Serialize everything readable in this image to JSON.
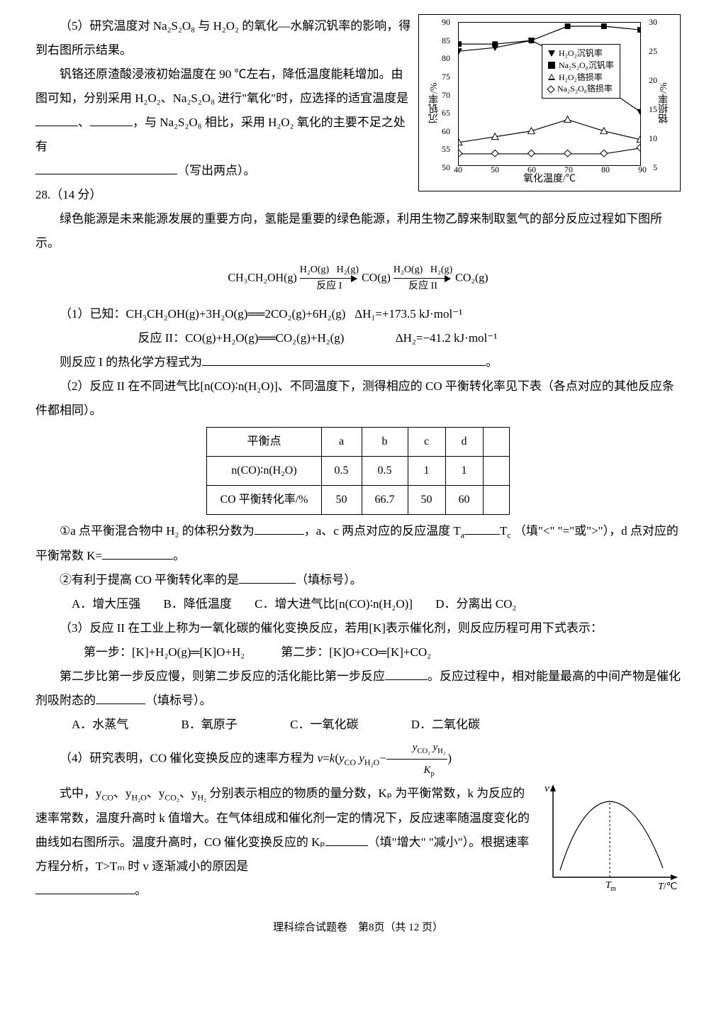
{
  "q27": {
    "part5": {
      "line1": "（5）研究温度对 Na₂S₂O₈ 与 H₂O₂ 的氧化—水解沉钒率的影响，得到右图所示结果。",
      "line2": "钒铬还原渣酸浸液初始温度在 90 ℃左右，降低温度能耗增加。由图可知，分别采用 H₂O₂、Na₂S₂O₈ 进行\"氧化\"时，应选择的适宜温度是",
      "line2b": "，与 Na₂S₂O₈ 相比，采用 H₂O₂ 氧化的主要不足之处有",
      "line3": "（写出两点）。"
    },
    "chart": {
      "type": "line",
      "x_label": "氧化温度/℃",
      "y_left_label": "沉钒率/%",
      "y_right_label": "铬损率/%",
      "xlim": [
        40,
        90
      ],
      "x_ticks": [
        40,
        50,
        60,
        70,
        80,
        90
      ],
      "y_left_lim": [
        50,
        90
      ],
      "y_left_ticks": [
        50,
        55,
        60,
        65,
        70,
        75,
        80,
        85,
        90
      ],
      "y_right_lim": [
        5,
        30
      ],
      "y_right_ticks": [
        5,
        10,
        15,
        20,
        25,
        30
      ],
      "background_color": "#ffffff",
      "legend": [
        {
          "marker": "triangle-down-filled",
          "label": "H₂O₂沉钒率",
          "axis": "left"
        },
        {
          "marker": "square-filled",
          "label": "Na₂S₂O₈沉钒率",
          "axis": "left"
        },
        {
          "marker": "triangle-up-hollow",
          "label": "H₂O₂铬损率",
          "axis": "right"
        },
        {
          "marker": "diamond-hollow",
          "label": "Na₂S₂O₈铬损率",
          "axis": "right"
        }
      ],
      "series": {
        "h2o2_v": {
          "x": [
            40,
            50,
            60,
            70,
            80,
            90
          ],
          "y": [
            82,
            83,
            85,
            80,
            72,
            65
          ],
          "axis": "left"
        },
        "na_v": {
          "x": [
            40,
            50,
            60,
            70,
            80,
            90
          ],
          "y": [
            84,
            84,
            85,
            89,
            89,
            88
          ],
          "axis": "left"
        },
        "h2o2_cr": {
          "x": [
            40,
            50,
            60,
            70,
            80,
            90
          ],
          "y": [
            9,
            10,
            11,
            13,
            11,
            9.5
          ],
          "axis": "right"
        },
        "na_cr": {
          "x": [
            40,
            50,
            60,
            70,
            80,
            90
          ],
          "y": [
            7,
            7,
            7,
            7,
            7,
            8
          ],
          "axis": "right"
        }
      }
    }
  },
  "q28": {
    "number": "28.（14 分）",
    "intro": "绿色能源是未来能源发展的重要方向，氢能是重要的绿色能源，利用生物乙醇来制取氢气的部分反应过程如下图所示。",
    "reaction": {
      "start": "CH₃CH₂OH(g)",
      "arr1_top_l": "H₂O(g)",
      "arr1_top_r": "H₂(g)",
      "arr1_bottom": "反应 I",
      "mid": "CO(g)",
      "arr2_top_l": "H₂O(g)",
      "arr2_top_r": "H₂(g)",
      "arr2_bottom": "反应 II",
      "end": "CO₂(g)"
    },
    "part1": {
      "known_label": "（1）已知：",
      "eq1": "CH₃CH₂OH(g)+3H₂O(g)══2CO₂(g)+6H₂(g)",
      "dh1": "ΔH₁=+173.5 kJ·mol⁻¹",
      "eq2_label": "反应 II：",
      "eq2": "CO(g)+H₂O(g)══CO₂(g)+H₂(g)",
      "dh2": "ΔH₂=−41.2 kJ·mol⁻¹",
      "ask": "则反应 I 的热化学方程式为"
    },
    "part2": {
      "text": "（2）反应 II 在不同进气比[n(CO)∶n(H₂O)]、不同温度下，测得相应的 CO 平衡转化率见下表（各点对应的其他反应条件都相同）。",
      "table": {
        "headers": [
          "平衡点",
          "a",
          "b",
          "c",
          "d"
        ],
        "rows": [
          [
            "n(CO)∶n(H₂O)",
            "0.5",
            "0.5",
            "1",
            "1"
          ],
          [
            "CO 平衡转化率/%",
            "50",
            "66.7",
            "50",
            "60"
          ]
        ]
      },
      "sub1a": "①a 点平衡混合物中 H₂ 的体积分数为",
      "sub1b": "，a、c 两点对应的反应温度 T",
      "sub1c": "T",
      "sub1d": "（填\"<\" \"=\"或\">\"），d 点对应的平衡常数 K=",
      "sub1e": "。",
      "sub2": "②有利于提高 CO 平衡转化率的是",
      "sub2b": "（填标号）。",
      "optA": "A．增大压强",
      "optB": "B．降低温度",
      "optC": "C．增大进气比[n(CO)∶n(H₂O)]",
      "optD": "D．分离出 CO₂"
    },
    "part3": {
      "text": "（3）反应 II 在工业上称为一氧化碳的催化变换反应，若用[K]表示催化剂，则反应历程可用下式表示：",
      "step1": "第一步：[K]+H₂O(g)═[K]O+H₂",
      "step2": "第二步：[K]O+CO═[K]+CO₂",
      "q1": "第二步比第一步反应慢，则第二步反应的活化能比第一步反应",
      "q1b": "。反应过程中，相对能量最高的中间产物是催化剂吸附态的",
      "q1c": "（填标号）。",
      "optA": "A．水蒸气",
      "optB": "B．氧原子",
      "optC": "C．一氧化碳",
      "optD": "D．二氧化碳"
    },
    "part4": {
      "text1": "（4）研究表明，CO 催化变换反应的速率方程为 ",
      "formula_v": "v=k(y",
      "formula_co": "CO",
      "formula_y": " y",
      "formula_h2o": "H₂O",
      "formula_minus": "−",
      "frac_num": "y_CO₂ y_H₂",
      "frac_den": "Kₚ",
      "formula_end": ")",
      "text2a": "式中，y",
      "text2b": "、y",
      "text2c": "、y",
      "text2d": "、y",
      "text2e": " 分别表示相应的物质的量分数，Kₚ 为平衡常数，k 为反应的速率常数，温度升高时 k 值增大。在气体组成和催化剂一定的情况下，反应速率随温度变化的曲线如右图所示。温度升高时，CO 催化变换反应的 Kₚ",
      "text2f": "（填\"增大\" \"减小\"）。根据速率方程分析，T>Tₘ 时 v 逐渐减小的原因是",
      "text2g": "。",
      "graph": {
        "type": "curve-peak",
        "x_label": "T/℃",
        "y_label": "v",
        "peak_label": "Tₘ",
        "curve_points": [
          [
            15,
            120
          ],
          [
            40,
            70
          ],
          [
            70,
            35
          ],
          [
            100,
            25
          ],
          [
            130,
            35
          ],
          [
            160,
            80
          ],
          [
            185,
            125
          ]
        ],
        "peak_x": 100
      }
    }
  },
  "footer": "理科综合试题卷　第8页（共 12 页）"
}
